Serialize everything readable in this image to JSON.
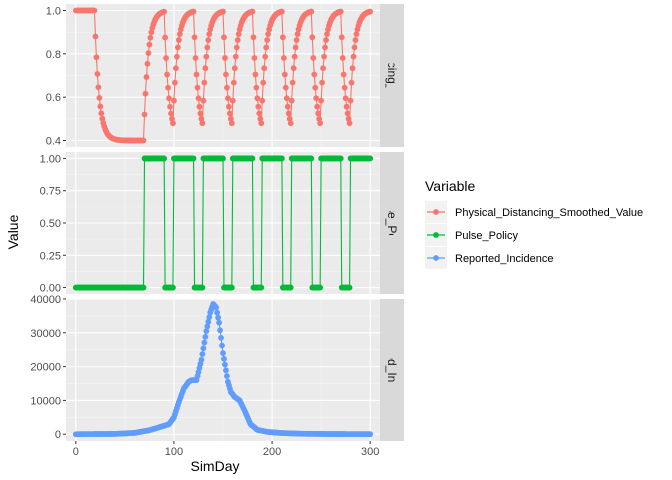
{
  "chart_data": {
    "type": "line",
    "xlabel": "SimDay",
    "ylabel": "Value",
    "x_ticks": [
      0,
      100,
      200,
      300
    ],
    "xlim": [
      -10,
      310
    ],
    "legend": {
      "title": "Variable",
      "position": "right",
      "items": [
        {
          "label": "Physical_Distancing_Smoothed_Value",
          "color": "#f8766d"
        },
        {
          "label": "Pulse_Policy",
          "color": "#00ba38"
        },
        {
          "label": "Reported_Incidence",
          "color": "#619cff"
        }
      ]
    },
    "panels": [
      {
        "strip": "Physical_Distancing_Smoothed_Value",
        "strip_visible": "cal_Distancing_Smoothed",
        "color": "#f8766d",
        "ylim": [
          0.37,
          1.03
        ],
        "y_ticks": [
          0.4,
          0.6,
          0.8,
          1.0
        ],
        "y_tick_labels": [
          "0.4",
          "0.6",
          "0.8",
          "1.0"
        ],
        "model": "smoothed_pulse",
        "policy_on_intervals": [
          [
            70,
            91
          ],
          [
            100,
            121
          ],
          [
            130,
            151
          ],
          [
            160,
            181
          ],
          [
            190,
            211
          ],
          [
            220,
            241
          ],
          [
            250,
            271
          ],
          [
            280,
            301
          ]
        ],
        "values_summary": "1.0 for days 0-19, exponential decay toward 0.4 from day 20, then alternating rises to about 0.95 and decays to about 0.42"
      },
      {
        "strip": "Pulse_Policy",
        "strip_visible": "Pulse_Policy",
        "color": "#00ba38",
        "ylim": [
          -0.05,
          1.05
        ],
        "y_ticks": [
          0.0,
          0.25,
          0.5,
          0.75,
          1.0
        ],
        "y_tick_labels": [
          "0.00",
          "0.25",
          "0.50",
          "0.75",
          "1.00"
        ],
        "model": "step",
        "policy_on_intervals": [
          [
            70,
            91
          ],
          [
            100,
            121
          ],
          [
            130,
            151
          ],
          [
            160,
            181
          ],
          [
            190,
            211
          ],
          [
            220,
            241
          ],
          [
            250,
            271
          ],
          [
            280,
            301
          ]
        ]
      },
      {
        "strip": "Reported_Incidence",
        "strip_visible": "Reported_Incidence",
        "color": "#619cff",
        "ylim": [
          -2000,
          40000
        ],
        "y_ticks": [
          0,
          10000,
          20000,
          30000,
          40000
        ],
        "y_tick_labels": [
          "0",
          "10000",
          "20000",
          "30000",
          "40000"
        ],
        "model": "keypoints",
        "keypoints": [
          [
            0,
            0
          ],
          [
            40,
            100
          ],
          [
            60,
            400
          ],
          [
            75,
            1200
          ],
          [
            90,
            2500
          ],
          [
            95,
            3000
          ],
          [
            100,
            5000
          ],
          [
            105,
            9500
          ],
          [
            110,
            13500
          ],
          [
            115,
            15500
          ],
          [
            118,
            16000
          ],
          [
            123,
            16000
          ],
          [
            128,
            22000
          ],
          [
            133,
            30500
          ],
          [
            137,
            36000
          ],
          [
            140,
            38500
          ],
          [
            143,
            37500
          ],
          [
            146,
            33000
          ],
          [
            150,
            24000
          ],
          [
            155,
            15500
          ],
          [
            158,
            12500
          ],
          [
            162,
            11000
          ],
          [
            167,
            10000
          ],
          [
            172,
            7000
          ],
          [
            178,
            3000
          ],
          [
            185,
            1300
          ],
          [
            195,
            700
          ],
          [
            210,
            350
          ],
          [
            230,
            150
          ],
          [
            260,
            60
          ],
          [
            300,
            20
          ]
        ]
      }
    ]
  }
}
